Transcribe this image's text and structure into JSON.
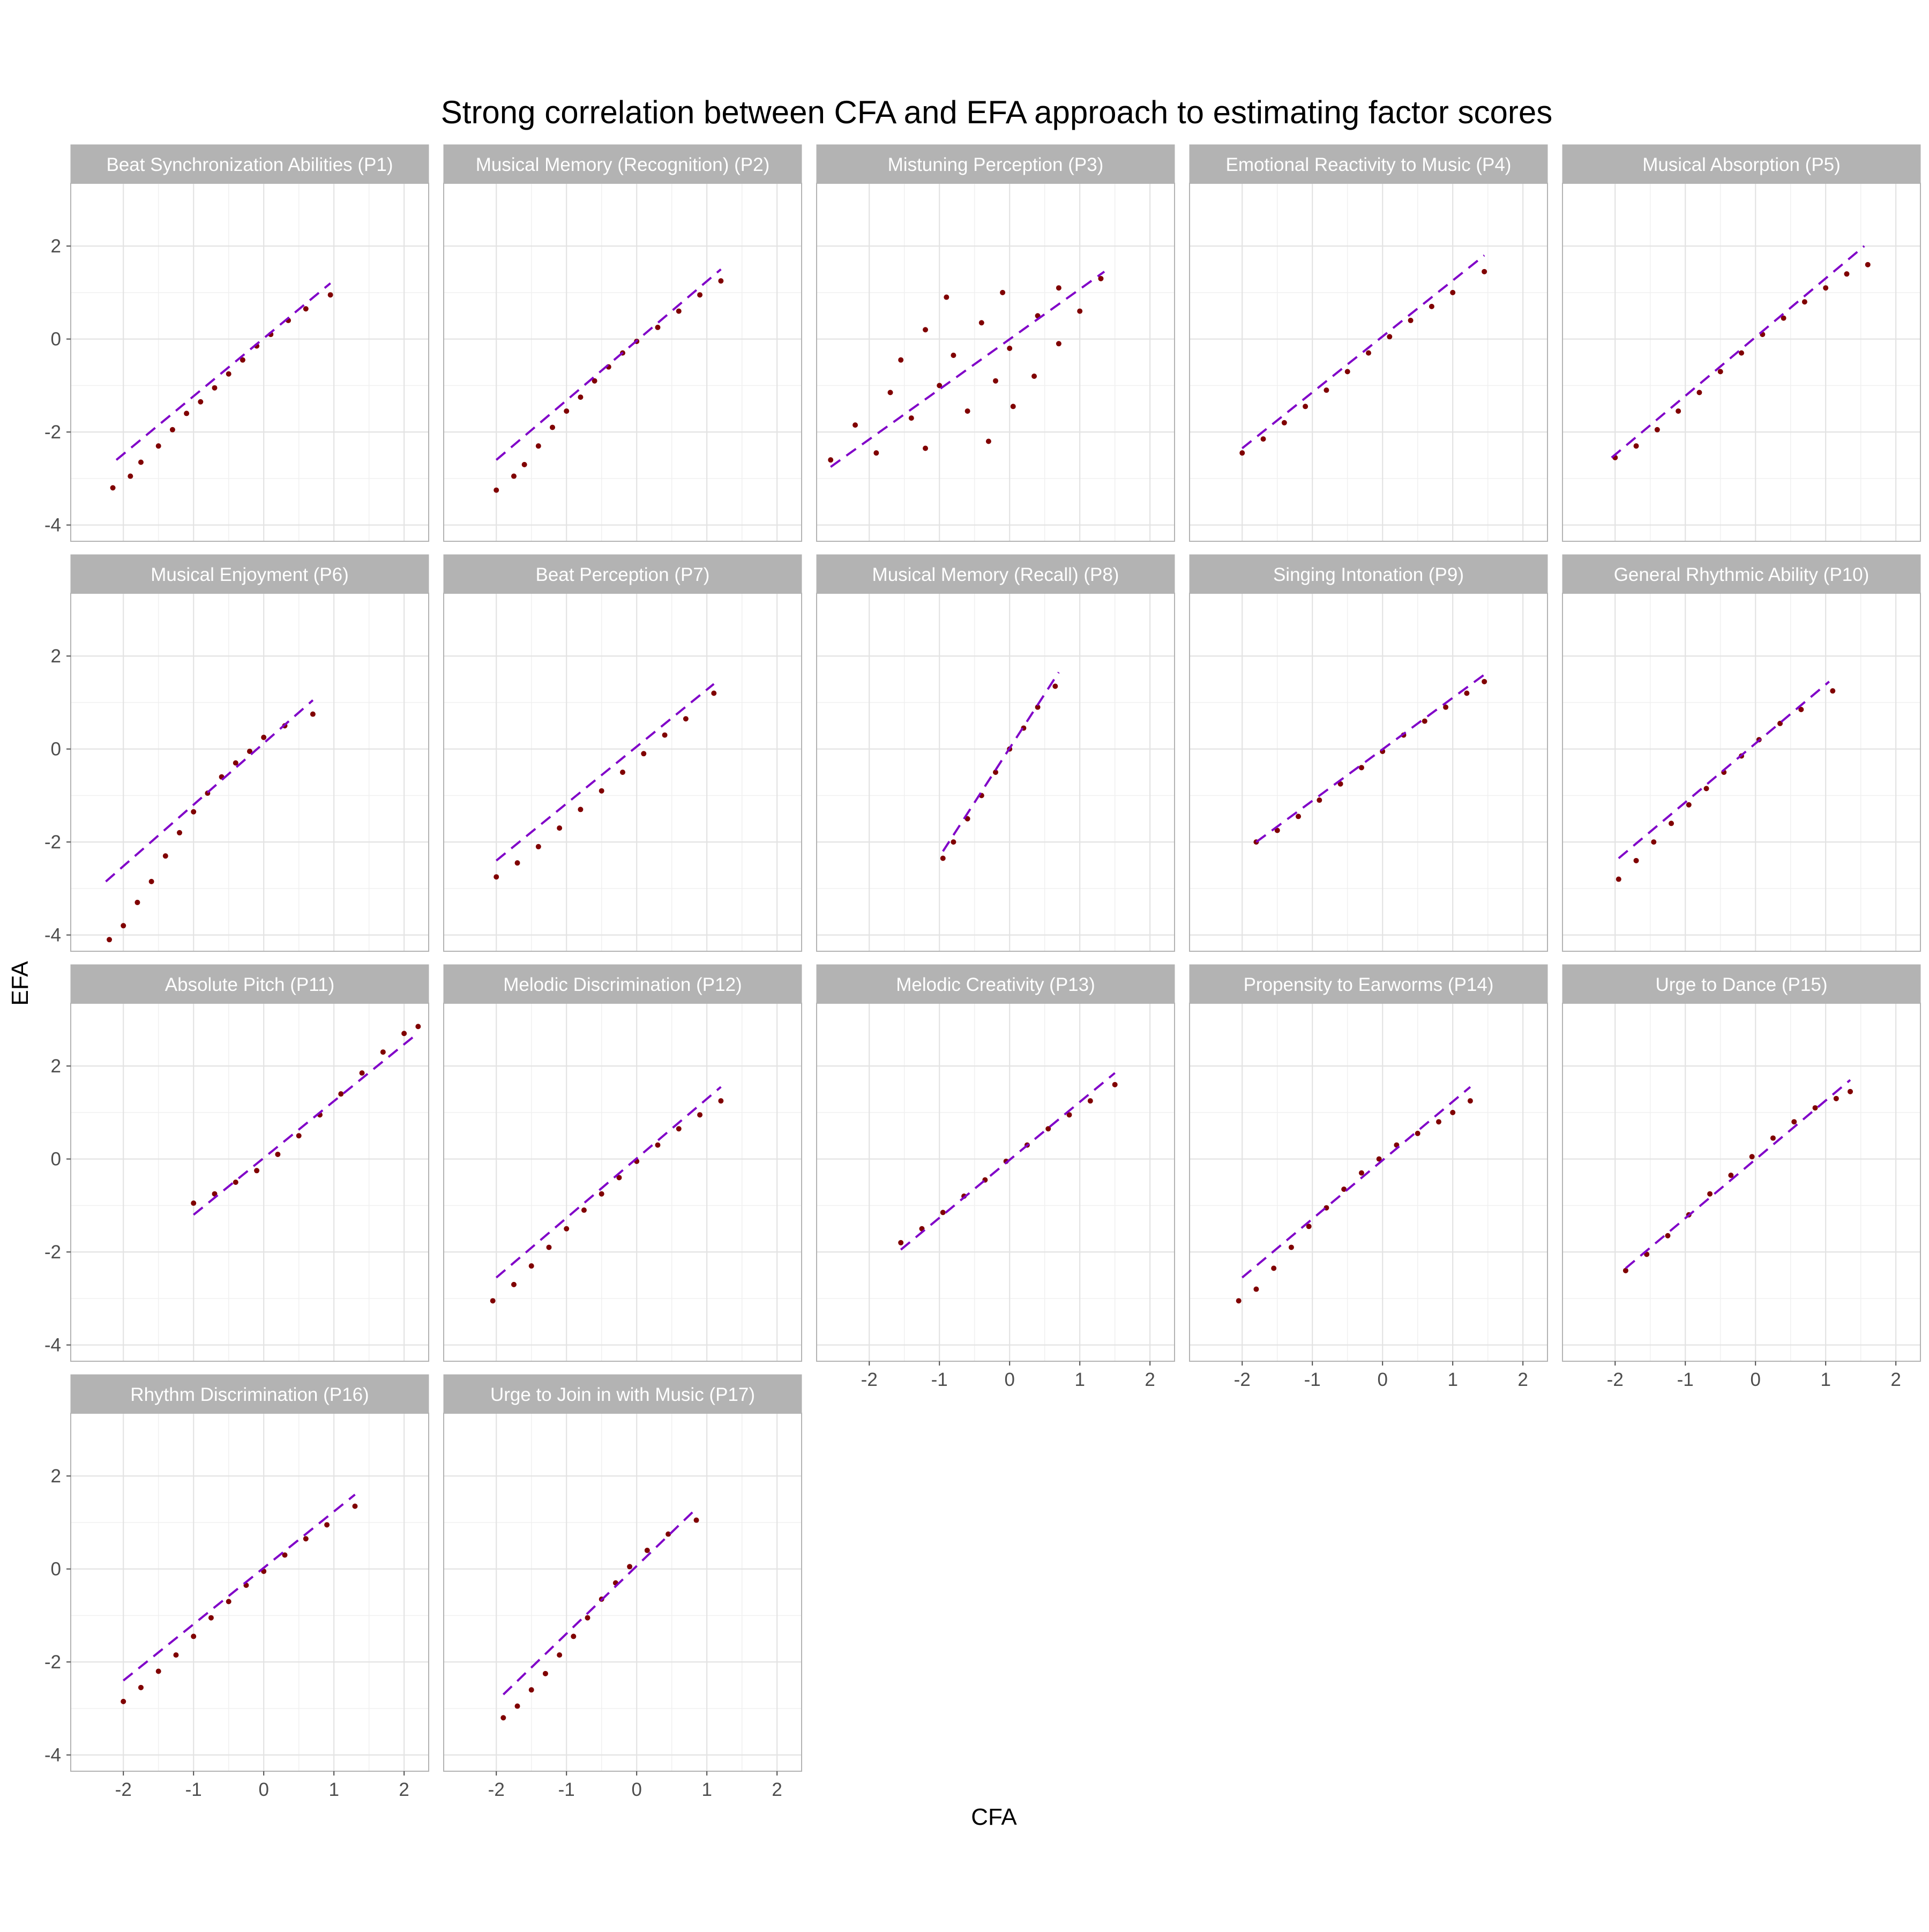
{
  "chart_data": {
    "type": "scatter",
    "title": "Strong correlation between CFA and EFA approach to estimating factor scores",
    "xlabel": "CFA",
    "ylabel": "EFA",
    "xlim": [
      -2.75,
      2.35
    ],
    "ylim": [
      -4.35,
      3.35
    ],
    "x_ticks": [
      -2,
      -1,
      0,
      1,
      2
    ],
    "y_ticks": [
      -4,
      -2,
      0,
      2
    ],
    "grid": true,
    "point_color": "#800000",
    "line_color": "#8000C8",
    "line_style": "dashed",
    "panels": [
      {
        "label": "Beat Synchronization Abilities (P1)",
        "line": [
          [
            -2.1,
            -2.6
          ],
          [
            0.95,
            1.2
          ]
        ],
        "points": [
          [
            -2.15,
            -3.2
          ],
          [
            -1.9,
            -2.95
          ],
          [
            -1.75,
            -2.65
          ],
          [
            -1.5,
            -2.3
          ],
          [
            -1.3,
            -1.95
          ],
          [
            -1.1,
            -1.6
          ],
          [
            -0.9,
            -1.35
          ],
          [
            -0.7,
            -1.05
          ],
          [
            -0.5,
            -0.75
          ],
          [
            -0.3,
            -0.45
          ],
          [
            -0.1,
            -0.15
          ],
          [
            0.1,
            0.1
          ],
          [
            0.35,
            0.4
          ],
          [
            0.6,
            0.65
          ],
          [
            0.95,
            0.95
          ]
        ]
      },
      {
        "label": "Musical Memory (Recognition) (P2)",
        "line": [
          [
            -2.0,
            -2.6
          ],
          [
            1.2,
            1.5
          ]
        ],
        "points": [
          [
            -2.0,
            -3.25
          ],
          [
            -1.75,
            -2.95
          ],
          [
            -1.6,
            -2.7
          ],
          [
            -1.4,
            -2.3
          ],
          [
            -1.2,
            -1.9
          ],
          [
            -1.0,
            -1.55
          ],
          [
            -0.8,
            -1.25
          ],
          [
            -0.6,
            -0.9
          ],
          [
            -0.4,
            -0.6
          ],
          [
            -0.2,
            -0.3
          ],
          [
            0.0,
            -0.05
          ],
          [
            0.3,
            0.25
          ],
          [
            0.6,
            0.6
          ],
          [
            0.9,
            0.95
          ],
          [
            1.2,
            1.25
          ]
        ]
      },
      {
        "label": "Mistuning Perception (P3)",
        "line": [
          [
            -2.55,
            -2.75
          ],
          [
            1.35,
            1.45
          ]
        ],
        "points": [
          [
            -2.55,
            -2.6
          ],
          [
            -1.9,
            -2.45
          ],
          [
            -1.2,
            -2.35
          ],
          [
            -0.3,
            -2.2
          ],
          [
            -2.2,
            -1.85
          ],
          [
            -1.4,
            -1.7
          ],
          [
            -0.6,
            -1.55
          ],
          [
            0.05,
            -1.45
          ],
          [
            -1.7,
            -1.15
          ],
          [
            -1.0,
            -1.0
          ],
          [
            -0.2,
            -0.9
          ],
          [
            0.35,
            -0.8
          ],
          [
            -1.55,
            -0.45
          ],
          [
            -0.8,
            -0.35
          ],
          [
            0.0,
            -0.2
          ],
          [
            0.7,
            -0.1
          ],
          [
            -1.2,
            0.2
          ],
          [
            -0.4,
            0.35
          ],
          [
            0.4,
            0.5
          ],
          [
            1.0,
            0.6
          ],
          [
            -0.9,
            0.9
          ],
          [
            -0.1,
            1.0
          ],
          [
            0.7,
            1.1
          ],
          [
            1.3,
            1.3
          ]
        ]
      },
      {
        "label": "Emotional Reactivity to Music (P4)",
        "line": [
          [
            -2.0,
            -2.35
          ],
          [
            1.45,
            1.8
          ]
        ],
        "points": [
          [
            -2.0,
            -2.45
          ],
          [
            -1.7,
            -2.15
          ],
          [
            -1.4,
            -1.8
          ],
          [
            -1.1,
            -1.45
          ],
          [
            -0.8,
            -1.1
          ],
          [
            -0.5,
            -0.7
          ],
          [
            -0.2,
            -0.3
          ],
          [
            0.1,
            0.05
          ],
          [
            0.4,
            0.4
          ],
          [
            0.7,
            0.7
          ],
          [
            1.0,
            1.0
          ],
          [
            1.45,
            1.45
          ]
        ]
      },
      {
        "label": "Musical Absorption (P5)",
        "line": [
          [
            -2.05,
            -2.55
          ],
          [
            1.55,
            2.0
          ]
        ],
        "points": [
          [
            -2.0,
            -2.55
          ],
          [
            -1.7,
            -2.3
          ],
          [
            -1.4,
            -1.95
          ],
          [
            -1.1,
            -1.55
          ],
          [
            -0.8,
            -1.15
          ],
          [
            -0.5,
            -0.7
          ],
          [
            -0.2,
            -0.3
          ],
          [
            0.1,
            0.1
          ],
          [
            0.4,
            0.45
          ],
          [
            0.7,
            0.8
          ],
          [
            1.0,
            1.1
          ],
          [
            1.3,
            1.4
          ],
          [
            1.6,
            1.6
          ]
        ]
      },
      {
        "label": "Musical Enjoyment (P6)",
        "line": [
          [
            -2.25,
            -2.85
          ],
          [
            0.7,
            1.05
          ]
        ],
        "points": [
          [
            -2.2,
            -4.1
          ],
          [
            -2.0,
            -3.8
          ],
          [
            -1.8,
            -3.3
          ],
          [
            -1.6,
            -2.85
          ],
          [
            -1.4,
            -2.3
          ],
          [
            -1.2,
            -1.8
          ],
          [
            -1.0,
            -1.35
          ],
          [
            -0.8,
            -0.95
          ],
          [
            -0.6,
            -0.6
          ],
          [
            -0.4,
            -0.3
          ],
          [
            -0.2,
            -0.05
          ],
          [
            0.0,
            0.25
          ],
          [
            0.3,
            0.5
          ],
          [
            0.7,
            0.75
          ]
        ]
      },
      {
        "label": "Beat Perception (P7)",
        "line": [
          [
            -2.0,
            -2.4
          ],
          [
            1.1,
            1.4
          ]
        ],
        "points": [
          [
            -2.0,
            -2.75
          ],
          [
            -1.7,
            -2.45
          ],
          [
            -1.4,
            -2.1
          ],
          [
            -1.1,
            -1.7
          ],
          [
            -0.8,
            -1.3
          ],
          [
            -0.5,
            -0.9
          ],
          [
            -0.2,
            -0.5
          ],
          [
            0.1,
            -0.1
          ],
          [
            0.4,
            0.3
          ],
          [
            0.7,
            0.65
          ],
          [
            1.1,
            1.2
          ]
        ]
      },
      {
        "label": "Musical Memory (Recall) (P8)",
        "line": [
          [
            -0.95,
            -2.2
          ],
          [
            0.7,
            1.65
          ]
        ],
        "points": [
          [
            -0.95,
            -2.35
          ],
          [
            -0.8,
            -2.0
          ],
          [
            -0.6,
            -1.5
          ],
          [
            -0.4,
            -1.0
          ],
          [
            -0.2,
            -0.5
          ],
          [
            0.0,
            0.0
          ],
          [
            0.2,
            0.45
          ],
          [
            0.4,
            0.9
          ],
          [
            0.65,
            1.35
          ]
        ]
      },
      {
        "label": "Singing Intonation (P9)",
        "line": [
          [
            -1.8,
            -2.0
          ],
          [
            1.45,
            1.6
          ]
        ],
        "points": [
          [
            -1.8,
            -2.0
          ],
          [
            -1.5,
            -1.75
          ],
          [
            -1.2,
            -1.45
          ],
          [
            -0.9,
            -1.1
          ],
          [
            -0.6,
            -0.75
          ],
          [
            -0.3,
            -0.4
          ],
          [
            0.0,
            -0.05
          ],
          [
            0.3,
            0.3
          ],
          [
            0.6,
            0.6
          ],
          [
            0.9,
            0.9
          ],
          [
            1.2,
            1.2
          ],
          [
            1.45,
            1.45
          ]
        ]
      },
      {
        "label": "General Rhythmic Ability (P10)",
        "line": [
          [
            -1.95,
            -2.35
          ],
          [
            1.05,
            1.45
          ]
        ],
        "points": [
          [
            -1.95,
            -2.8
          ],
          [
            -1.7,
            -2.4
          ],
          [
            -1.45,
            -2.0
          ],
          [
            -1.2,
            -1.6
          ],
          [
            -0.95,
            -1.2
          ],
          [
            -0.7,
            -0.85
          ],
          [
            -0.45,
            -0.5
          ],
          [
            -0.2,
            -0.15
          ],
          [
            0.05,
            0.2
          ],
          [
            0.35,
            0.55
          ],
          [
            0.65,
            0.85
          ],
          [
            1.1,
            1.25
          ]
        ]
      },
      {
        "label": "Absolute Pitch (P11)",
        "line": [
          [
            -1.0,
            -1.2
          ],
          [
            2.15,
            2.65
          ]
        ],
        "points": [
          [
            -1.0,
            -0.95
          ],
          [
            -0.7,
            -0.75
          ],
          [
            -0.4,
            -0.5
          ],
          [
            -0.1,
            -0.25
          ],
          [
            0.2,
            0.1
          ],
          [
            0.5,
            0.5
          ],
          [
            0.8,
            0.95
          ],
          [
            1.1,
            1.4
          ],
          [
            1.4,
            1.85
          ],
          [
            1.7,
            2.3
          ],
          [
            2.0,
            2.7
          ],
          [
            2.2,
            2.85
          ]
        ]
      },
      {
        "label": "Melodic Discrimination (P12)",
        "line": [
          [
            -2.0,
            -2.55
          ],
          [
            1.2,
            1.55
          ]
        ],
        "points": [
          [
            -2.05,
            -3.05
          ],
          [
            -1.75,
            -2.7
          ],
          [
            -1.5,
            -2.3
          ],
          [
            -1.25,
            -1.9
          ],
          [
            -1.0,
            -1.5
          ],
          [
            -0.75,
            -1.1
          ],
          [
            -0.5,
            -0.75
          ],
          [
            -0.25,
            -0.4
          ],
          [
            0.0,
            -0.05
          ],
          [
            0.3,
            0.3
          ],
          [
            0.6,
            0.65
          ],
          [
            0.9,
            0.95
          ],
          [
            1.2,
            1.25
          ]
        ]
      },
      {
        "label": "Melodic Creativity (P13)",
        "line": [
          [
            -1.55,
            -1.95
          ],
          [
            1.5,
            1.85
          ]
        ],
        "points": [
          [
            -1.55,
            -1.8
          ],
          [
            -1.25,
            -1.5
          ],
          [
            -0.95,
            -1.15
          ],
          [
            -0.65,
            -0.8
          ],
          [
            -0.35,
            -0.45
          ],
          [
            -0.05,
            -0.05
          ],
          [
            0.25,
            0.3
          ],
          [
            0.55,
            0.65
          ],
          [
            0.85,
            0.95
          ],
          [
            1.15,
            1.25
          ],
          [
            1.5,
            1.6
          ]
        ]
      },
      {
        "label": "Propensity to Earworms (P14)",
        "line": [
          [
            -2.0,
            -2.55
          ],
          [
            1.25,
            1.55
          ]
        ],
        "points": [
          [
            -2.05,
            -3.05
          ],
          [
            -1.8,
            -2.8
          ],
          [
            -1.55,
            -2.35
          ],
          [
            -1.3,
            -1.9
          ],
          [
            -1.05,
            -1.45
          ],
          [
            -0.8,
            -1.05
          ],
          [
            -0.55,
            -0.65
          ],
          [
            -0.3,
            -0.3
          ],
          [
            -0.05,
            0.0
          ],
          [
            0.2,
            0.3
          ],
          [
            0.5,
            0.55
          ],
          [
            0.8,
            0.8
          ],
          [
            1.0,
            1.0
          ],
          [
            1.25,
            1.25
          ]
        ]
      },
      {
        "label": "Urge to Dance (P15)",
        "line": [
          [
            -1.85,
            -2.35
          ],
          [
            1.35,
            1.7
          ]
        ],
        "points": [
          [
            -1.85,
            -2.4
          ],
          [
            -1.55,
            -2.05
          ],
          [
            -1.25,
            -1.65
          ],
          [
            -0.95,
            -1.2
          ],
          [
            -0.65,
            -0.75
          ],
          [
            -0.35,
            -0.35
          ],
          [
            -0.05,
            0.05
          ],
          [
            0.25,
            0.45
          ],
          [
            0.55,
            0.8
          ],
          [
            0.85,
            1.1
          ],
          [
            1.15,
            1.3
          ],
          [
            1.35,
            1.45
          ]
        ]
      },
      {
        "label": "Rhythm Discrimination (P16)",
        "line": [
          [
            -2.0,
            -2.4
          ],
          [
            1.3,
            1.6
          ]
        ],
        "points": [
          [
            -2.0,
            -2.85
          ],
          [
            -1.75,
            -2.55
          ],
          [
            -1.5,
            -2.2
          ],
          [
            -1.25,
            -1.85
          ],
          [
            -1.0,
            -1.45
          ],
          [
            -0.75,
            -1.05
          ],
          [
            -0.5,
            -0.7
          ],
          [
            -0.25,
            -0.35
          ],
          [
            0.0,
            -0.05
          ],
          [
            0.3,
            0.3
          ],
          [
            0.6,
            0.65
          ],
          [
            0.9,
            0.95
          ],
          [
            1.3,
            1.35
          ]
        ]
      },
      {
        "label": "Urge to Join in with Music (P17)",
        "line": [
          [
            -1.9,
            -2.7
          ],
          [
            0.85,
            1.3
          ]
        ],
        "points": [
          [
            -1.9,
            -3.2
          ],
          [
            -1.7,
            -2.95
          ],
          [
            -1.5,
            -2.6
          ],
          [
            -1.3,
            -2.25
          ],
          [
            -1.1,
            -1.85
          ],
          [
            -0.9,
            -1.45
          ],
          [
            -0.7,
            -1.05
          ],
          [
            -0.5,
            -0.65
          ],
          [
            -0.3,
            -0.3
          ],
          [
            -0.1,
            0.05
          ],
          [
            0.15,
            0.4
          ],
          [
            0.45,
            0.75
          ],
          [
            0.85,
            1.05
          ]
        ]
      }
    ]
  }
}
